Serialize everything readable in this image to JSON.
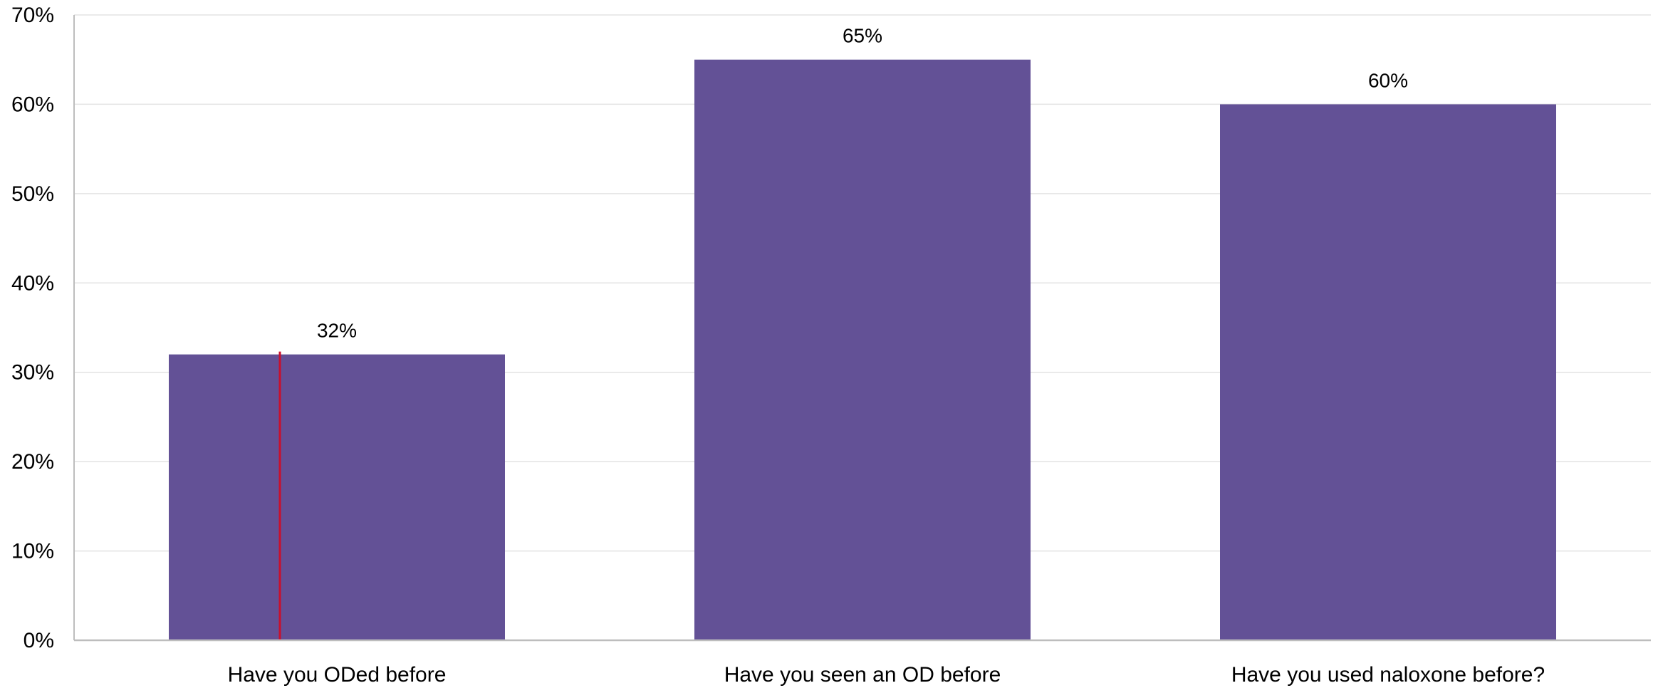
{
  "chart_data": {
    "type": "bar",
    "categories": [
      "Have you ODed before",
      "Have you seen an OD before",
      "Have you used naloxone before?"
    ],
    "values": [
      32,
      65,
      60
    ],
    "data_labels": [
      "32%",
      "65%",
      "60%"
    ],
    "ylim": [
      0,
      70
    ],
    "yticks": [
      0,
      10,
      20,
      30,
      40,
      50,
      60,
      70
    ],
    "ytick_labels": [
      "0%",
      "10%",
      "20%",
      "30%",
      "40%",
      "50%",
      "60%",
      "70%"
    ],
    "grid": true,
    "legend": "none",
    "colors": {
      "bar": "#635196",
      "marker": "#c8102e",
      "grid": "#e3e3e3",
      "axis": "#bdbdbd"
    }
  }
}
